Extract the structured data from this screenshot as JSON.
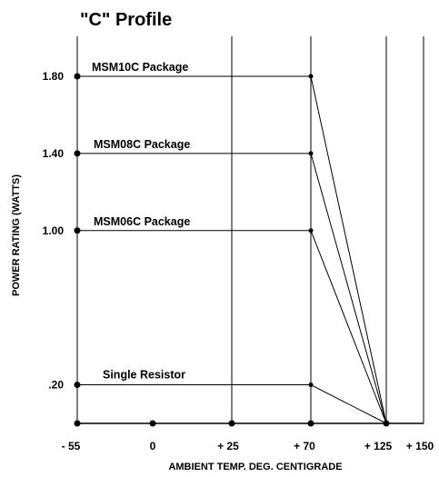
{
  "chart_data": {
    "type": "line",
    "title": "\"C\" Profile",
    "xlabel": "AMBIENT TEMP. DEG. CENTIGRADE",
    "ylabel": "POWER RATING (WATTS)",
    "x_ticks": [
      -55,
      0,
      25,
      70,
      125,
      150
    ],
    "x_tick_labels": [
      "- 55",
      "0",
      "+ 25",
      "+ 70",
      "+ 125",
      "+ 150"
    ],
    "y_ticks": [
      0.2,
      1.0,
      1.4,
      1.8
    ],
    "y_tick_labels": [
      ".20",
      "1.00",
      "1.40",
      "1.80"
    ],
    "series": [
      {
        "name": "MSM10C Package",
        "x": [
          -55,
          70,
          125
        ],
        "y": [
          1.8,
          1.8,
          0
        ]
      },
      {
        "name": "MSM08C Package",
        "x": [
          -55,
          70,
          125
        ],
        "y": [
          1.4,
          1.4,
          0
        ]
      },
      {
        "name": "MSM06C Package",
        "x": [
          -55,
          70,
          125
        ],
        "y": [
          1.0,
          1.0,
          0
        ]
      },
      {
        "name": "Single Resistor",
        "x": [
          -55,
          70,
          125
        ],
        "y": [
          0.2,
          0.2,
          0
        ]
      }
    ],
    "grid": "vertical lines at x ticks",
    "colors": {
      "line": "#000000",
      "background": "#ffffff"
    }
  }
}
